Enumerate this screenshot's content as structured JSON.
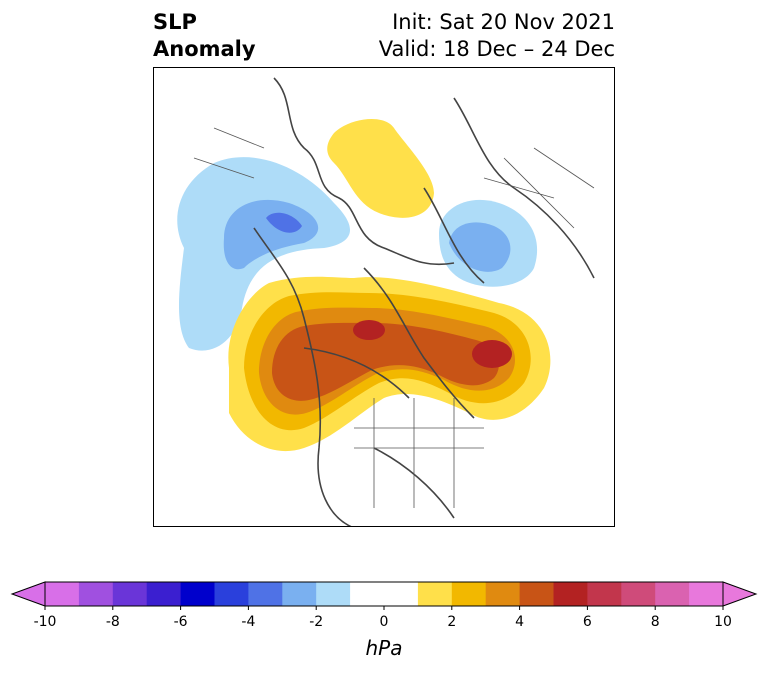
{
  "header": {
    "title_line1": "SLP",
    "title_line2": "Anomaly",
    "init": "Init: Sat 20 Nov 2021",
    "valid": "Valid: 18 Dec – 24 Dec"
  },
  "map": {
    "projection": "north-polar",
    "field": "sea level pressure anomaly"
  },
  "colorbar": {
    "unit": "hPa",
    "ticks": [
      "-10",
      "-8",
      "-6",
      "-4",
      "-2",
      "0",
      "2",
      "4",
      "6",
      "8",
      "10"
    ],
    "levels": [
      -10,
      -9,
      -8,
      -7,
      -6,
      -5,
      -4,
      -3,
      -2,
      -1,
      1,
      2,
      3,
      4,
      5,
      6,
      7,
      8,
      9,
      10
    ],
    "colors": [
      "#d86fe8",
      "#a050e0",
      "#6a35d8",
      "#3b1fd0",
      "#0000cc",
      "#2a40dc",
      "#4f72e6",
      "#7ab0f0",
      "#aedcf8",
      "#ffffff",
      "#ffffff",
      "#ffe04a",
      "#f2b800",
      "#e08a10",
      "#c85416",
      "#b32222",
      "#c2364c",
      "#cf4b7a",
      "#da62b0",
      "#e878dc"
    ],
    "extend_low_color": "#d86fe8",
    "extend_high_color": "#e878dc"
  }
}
